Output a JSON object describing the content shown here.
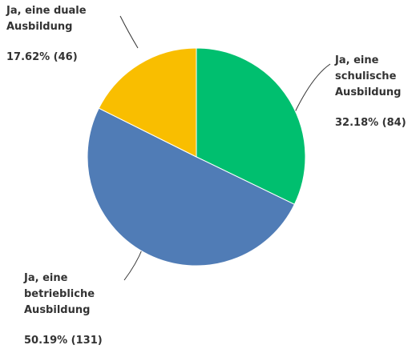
{
  "chart_data": {
    "type": "pie",
    "categories": [
      "Ja, eine\nschulische\nAusbildung",
      "Ja, eine\nbetriebliche\nAusbildung",
      "Ja, eine duale\nAusbildung"
    ],
    "values": [
      32.18,
      50.19,
      17.62
    ],
    "counts": [
      84,
      131,
      46
    ],
    "value_labels": [
      "32.18% (84)",
      "50.19% (131)",
      "17.62% (46)"
    ],
    "colors": [
      "#00bf6f",
      "#507cb6",
      "#f9be00"
    ]
  }
}
